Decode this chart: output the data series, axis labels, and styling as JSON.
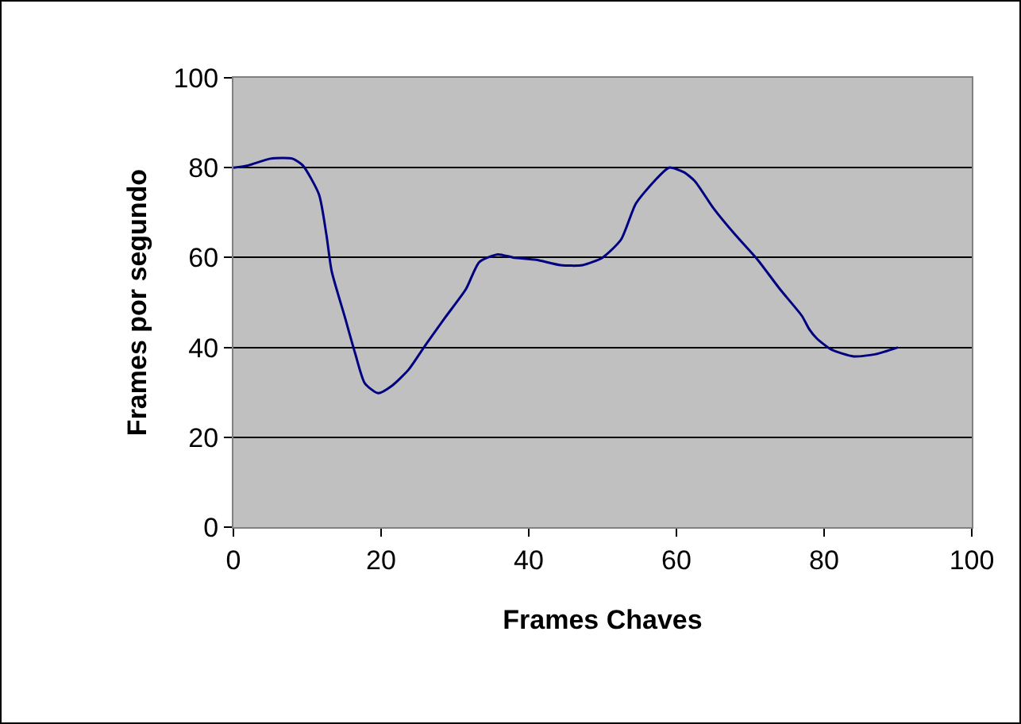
{
  "chart_data": {
    "type": "line",
    "xlabel": "Frames Chaves",
    "ylabel": "Frames por segundo",
    "xlim": [
      0,
      100
    ],
    "xticks": [
      0,
      20,
      40,
      60,
      80,
      100
    ],
    "ylim": [
      0,
      100
    ],
    "yticks": [
      0,
      20,
      40,
      60,
      80,
      100
    ],
    "grid": "y",
    "legend": false,
    "marker": "none",
    "line_style": "solid",
    "series": [
      {
        "color": "#000080",
        "x": [
          0,
          2,
          5,
          8,
          9.4,
          11.6,
          12.6,
          13.3,
          15.1,
          16.5,
          17.8,
          19.6,
          21.5,
          23.7,
          26,
          28.7,
          31.5,
          33.3,
          35.8,
          37.9,
          41,
          44.3,
          47.3,
          50,
          52.5,
          54.5,
          57,
          59,
          61,
          62.5,
          65,
          68,
          71,
          74,
          77,
          78,
          79,
          81,
          84,
          87,
          90
        ],
        "values": [
          80,
          80.5,
          82,
          82,
          80.5,
          74,
          65,
          57,
          46.7,
          38.6,
          32,
          29.8,
          31.5,
          35,
          40.5,
          46.7,
          53,
          59,
          60.7,
          60,
          59.5,
          58.3,
          58.3,
          60,
          64,
          72,
          77,
          80,
          79,
          77,
          71,
          65,
          59.5,
          53,
          47,
          44,
          42,
          39.5,
          38,
          38.5,
          40
        ]
      }
    ]
  }
}
